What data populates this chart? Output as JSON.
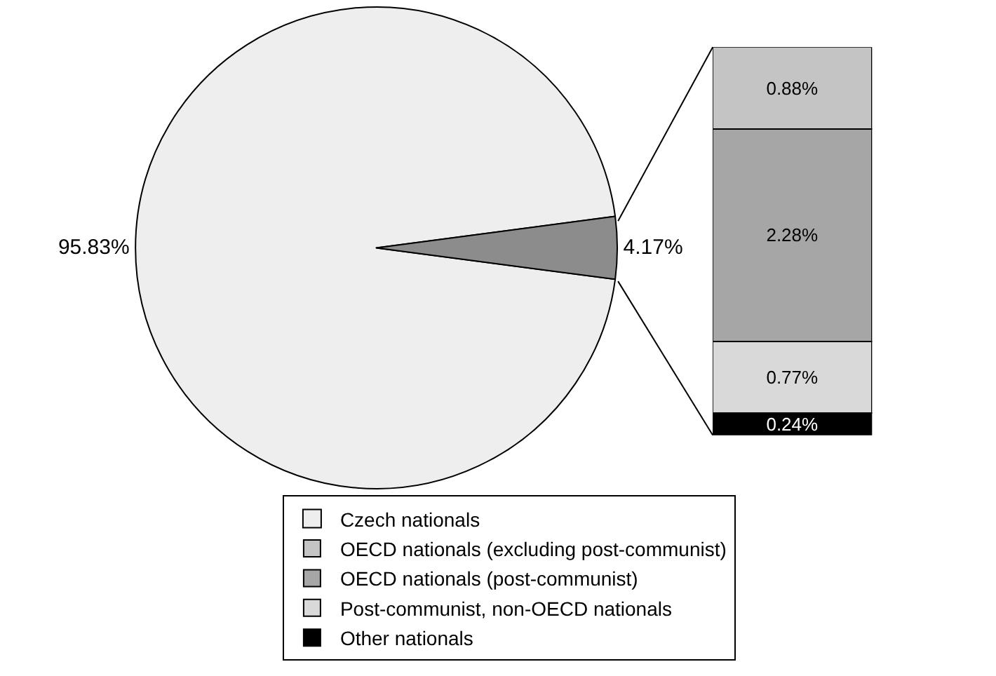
{
  "chart_data": [
    {
      "type": "pie",
      "categories": [
        "Czech nationals",
        null
      ],
      "values": [
        95.83,
        4.17
      ],
      "colors": [
        "#eeeeee",
        "#8c8c8c"
      ],
      "value_labels": [
        "95.83%",
        "4.17%"
      ],
      "legend": "bottom"
    },
    {
      "type": "bar",
      "stacked": true,
      "legend": "bottom",
      "categories": [
        null
      ],
      "series": [
        {
          "name": "Other nationals",
          "color": "#000000",
          "values": [
            0.24
          ],
          "value_labels": [
            "0.24%"
          ]
        },
        {
          "name": "Post-communist, non-OECD nationals",
          "color": "#d9d9d9",
          "values": [
            0.77
          ],
          "value_labels": [
            "0.77%"
          ]
        },
        {
          "name": "OECD nationals (post-communist)",
          "color": "#a6a6a6",
          "values": [
            2.28
          ],
          "value_labels": [
            "2.28%"
          ]
        },
        {
          "name": "OECD nationals (excluding post-communist)",
          "color": "#c4c4c4",
          "values": [
            0.88
          ],
          "value_labels": [
            "0.88%"
          ]
        }
      ]
    }
  ]
}
